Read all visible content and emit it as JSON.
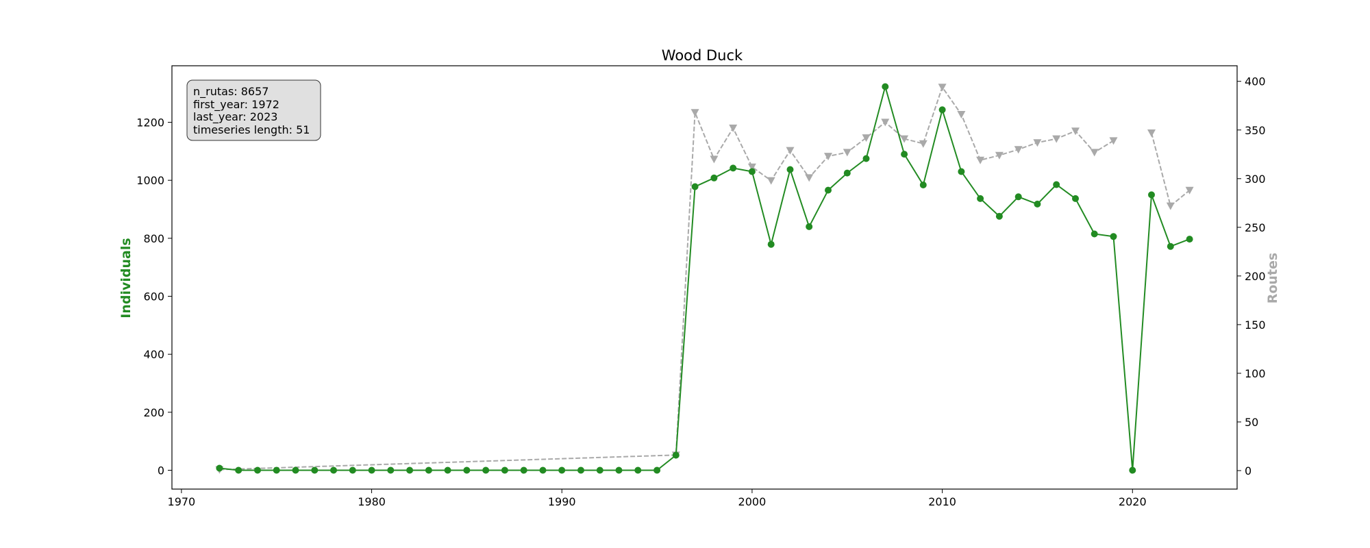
{
  "chart_data": {
    "type": "line",
    "title": "Wood Duck",
    "xlabel": "",
    "ylabel_left": "Individuals",
    "ylabel_right": "Routes",
    "xlim": [
      1969.5,
      2025.5
    ],
    "ylim_left": [
      -65,
      1395
    ],
    "ylim_right": [
      -19,
      416
    ],
    "x_ticks": [
      1970,
      1980,
      1990,
      2000,
      2010,
      2020
    ],
    "y_left_ticks": [
      0,
      200,
      400,
      600,
      800,
      1000,
      1200
    ],
    "y_right_ticks": [
      0,
      50,
      100,
      150,
      200,
      250,
      300,
      350,
      400
    ],
    "grid": false,
    "info_box": [
      "n_rutas: 8657",
      "first_year: 1972",
      "last_year: 2023",
      "timeseries length: 51"
    ],
    "series": [
      {
        "name": "Individuals",
        "axis": "left",
        "color": "#228b22",
        "style": "solid",
        "marker": "circle",
        "x": [
          1972,
          1973,
          1974,
          1975,
          1976,
          1977,
          1978,
          1979,
          1980,
          1981,
          1982,
          1983,
          1984,
          1985,
          1986,
          1987,
          1988,
          1989,
          1990,
          1991,
          1992,
          1993,
          1994,
          1995,
          1996,
          1997,
          1998,
          1999,
          2000,
          2001,
          2002,
          2003,
          2004,
          2005,
          2006,
          2007,
          2008,
          2009,
          2010,
          2011,
          2012,
          2013,
          2014,
          2015,
          2016,
          2017,
          2018,
          2019,
          2020,
          2021,
          2022,
          2023
        ],
        "values": [
          7,
          0,
          0,
          0,
          0,
          0,
          0,
          0,
          0,
          0,
          0,
          0,
          0,
          0,
          0,
          0,
          0,
          0,
          0,
          0,
          0,
          0,
          0,
          0,
          52,
          978,
          1008,
          1042,
          1030,
          779,
          1037,
          840,
          966,
          1025,
          1075,
          1323,
          1090,
          984,
          1243,
          1030,
          937,
          876,
          943,
          918,
          985,
          937,
          815,
          806,
          0,
          950,
          772,
          797
        ]
      },
      {
        "name": "Routes",
        "axis": "right",
        "color": "#a9a9a9",
        "style": "dashed",
        "marker": "triangle-down",
        "x": [
          1972,
          1996,
          1997,
          1998,
          1999,
          2000,
          2001,
          2002,
          2003,
          2004,
          2005,
          2006,
          2007,
          2008,
          2009,
          2010,
          2011,
          2012,
          2013,
          2014,
          2015,
          2016,
          2017,
          2018,
          2019,
          2020,
          2021,
          2022,
          2023
        ],
        "values": [
          1,
          16,
          368,
          320,
          352,
          312,
          298,
          329,
          301,
          323,
          327,
          342,
          358,
          341,
          336,
          394,
          366,
          319,
          324,
          330,
          337,
          341,
          349,
          327,
          339,
          null,
          347,
          272,
          288
        ]
      }
    ]
  }
}
